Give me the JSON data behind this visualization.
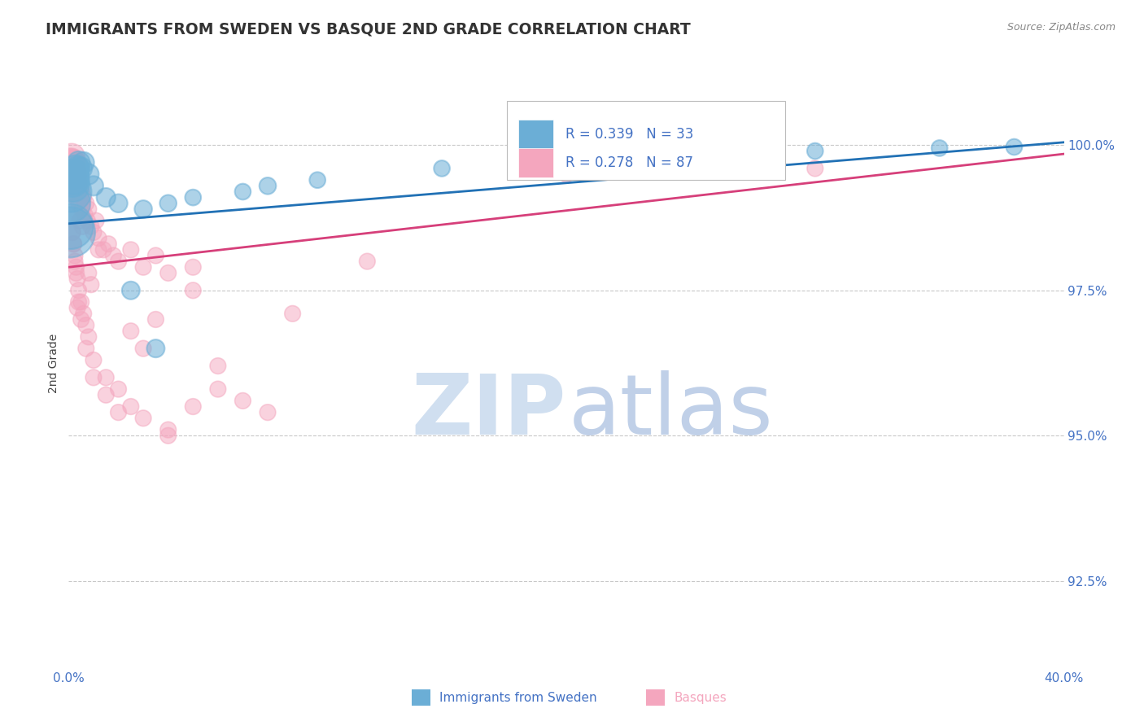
{
  "title": "IMMIGRANTS FROM SWEDEN VS BASQUE 2ND GRADE CORRELATION CHART",
  "source_text": "Source: ZipAtlas.com",
  "ylabel": "2nd Grade",
  "xlim": [
    0.0,
    40.0
  ],
  "ylim": [
    91.0,
    101.5
  ],
  "yticks": [
    92.5,
    95.0,
    97.5,
    100.0
  ],
  "ytick_labels": [
    "92.5%",
    "95.0%",
    "97.5%",
    "100.0%"
  ],
  "xtick_labels": [
    "0.0%",
    "40.0%"
  ],
  "xtick_positions": [
    0.0,
    40.0
  ],
  "legend_r_sweden": "R = 0.339",
  "legend_n_sweden": "N = 33",
  "legend_r_basques": "R = 0.278",
  "legend_n_basques": "N = 87",
  "color_sweden": "#6baed6",
  "color_basques": "#f4a6be",
  "color_trend_sweden": "#2171b5",
  "color_trend_basques": "#d63f7a",
  "color_axis_labels": "#4472c4",
  "color_legend_text": "#333333",
  "watermark_zip_color": "#d0dff0",
  "watermark_atlas_color": "#c0d0e8",
  "background_color": "#ffffff",
  "grid_color": "#c8c8c8",
  "title_color": "#333333",
  "source_color": "#888888",
  "sweden_x": [
    0.05,
    0.08,
    0.1,
    0.12,
    0.15,
    0.18,
    0.2,
    0.22,
    0.25,
    0.28,
    0.3,
    0.35,
    0.4,
    0.5,
    0.6,
    0.8,
    1.0,
    1.5,
    2.0,
    3.0,
    4.0,
    5.0,
    7.0,
    10.0,
    15.0,
    20.0,
    25.0,
    30.0,
    35.0,
    38.0,
    2.5,
    3.5,
    8.0
  ],
  "sweden_y": [
    98.5,
    98.6,
    99.2,
    99.0,
    99.4,
    99.3,
    99.5,
    99.4,
    99.5,
    99.6,
    99.5,
    99.6,
    99.7,
    99.6,
    99.7,
    99.5,
    99.3,
    99.1,
    99.0,
    98.9,
    99.0,
    99.1,
    99.2,
    99.4,
    99.6,
    99.7,
    99.8,
    99.9,
    99.95,
    99.97,
    97.5,
    96.5,
    99.3
  ],
  "sweden_sizes": [
    200,
    160,
    130,
    110,
    90,
    80,
    70,
    65,
    60,
    55,
    50,
    45,
    40,
    38,
    35,
    33,
    30,
    28,
    26,
    24,
    22,
    20,
    20,
    20,
    20,
    20,
    20,
    20,
    20,
    20,
    25,
    25,
    22
  ],
  "basque_x": [
    0.03,
    0.05,
    0.07,
    0.09,
    0.1,
    0.12,
    0.14,
    0.16,
    0.18,
    0.2,
    0.22,
    0.24,
    0.26,
    0.28,
    0.3,
    0.32,
    0.35,
    0.38,
    0.4,
    0.45,
    0.5,
    0.55,
    0.6,
    0.65,
    0.7,
    0.75,
    0.8,
    0.9,
    1.0,
    1.1,
    1.2,
    1.4,
    1.6,
    1.8,
    2.0,
    2.5,
    3.0,
    3.5,
    4.0,
    5.0,
    0.15,
    0.2,
    0.25,
    0.3,
    0.35,
    0.4,
    0.5,
    0.6,
    0.7,
    0.8,
    1.0,
    1.5,
    2.0,
    2.5,
    3.0,
    4.0,
    5.0,
    6.0,
    7.0,
    8.0,
    0.1,
    0.15,
    0.2,
    0.25,
    0.3,
    0.4,
    0.5,
    0.7,
    1.0,
    1.5,
    2.0,
    3.0,
    4.0,
    5.0,
    20.0,
    30.0,
    0.35,
    0.55,
    0.8,
    1.2,
    2.5,
    3.5,
    6.0,
    9.0,
    12.0,
    0.45,
    0.9
  ],
  "basque_y": [
    99.3,
    99.5,
    99.6,
    99.7,
    99.7,
    99.8,
    99.7,
    99.6,
    99.5,
    99.7,
    99.6,
    99.5,
    99.4,
    99.3,
    99.5,
    99.2,
    99.4,
    99.1,
    99.3,
    99.0,
    99.2,
    98.9,
    99.1,
    98.8,
    99.0,
    98.7,
    98.9,
    98.6,
    98.5,
    98.7,
    98.4,
    98.2,
    98.3,
    98.1,
    98.0,
    98.2,
    97.9,
    98.1,
    97.8,
    97.9,
    98.5,
    98.3,
    98.1,
    97.9,
    97.7,
    97.5,
    97.3,
    97.1,
    96.9,
    96.7,
    96.3,
    96.0,
    95.8,
    95.5,
    95.3,
    95.1,
    95.5,
    95.8,
    95.6,
    95.4,
    98.8,
    98.5,
    98.3,
    98.0,
    97.8,
    97.3,
    97.0,
    96.5,
    96.0,
    95.7,
    95.4,
    96.5,
    95.0,
    97.5,
    99.5,
    99.6,
    97.2,
    98.6,
    97.8,
    98.2,
    96.8,
    97.0,
    96.2,
    97.1,
    98.0,
    98.7,
    97.6
  ],
  "basque_sizes": [
    80,
    80,
    70,
    65,
    60,
    55,
    52,
    50,
    48,
    46,
    44,
    42,
    40,
    38,
    36,
    34,
    32,
    30,
    28,
    26,
    24,
    22,
    20,
    20,
    20,
    20,
    20,
    20,
    20,
    20,
    20,
    20,
    20,
    20,
    20,
    20,
    20,
    20,
    20,
    20,
    20,
    20,
    20,
    20,
    20,
    20,
    20,
    20,
    20,
    20,
    20,
    20,
    20,
    20,
    20,
    20,
    20,
    20,
    20,
    20,
    20,
    20,
    20,
    20,
    20,
    20,
    20,
    20,
    20,
    20,
    20,
    20,
    20,
    20,
    20,
    20,
    20,
    20,
    20,
    20,
    20,
    20,
    20,
    20,
    20,
    20,
    20
  ],
  "trend_sweden_x0": 0.0,
  "trend_sweden_y0": 98.65,
  "trend_sweden_x1": 40.0,
  "trend_sweden_y1": 100.05,
  "trend_basque_x0": 0.0,
  "trend_basque_y0": 97.9,
  "trend_basque_x1": 40.0,
  "trend_basque_y1": 99.85
}
